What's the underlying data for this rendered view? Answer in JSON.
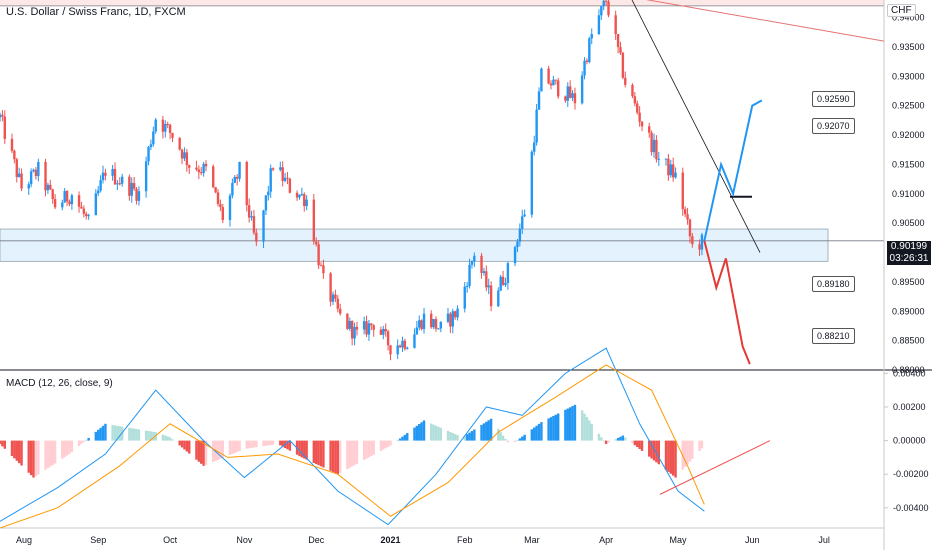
{
  "header": {
    "title": "U.S. Dollar / Swiss Franc, 1D, FXCM",
    "currency_badge": "CHF",
    "last_price": "0.90199",
    "countdown": "03:26:31"
  },
  "macd": {
    "title": "MACD (12, 26, close, 9)",
    "ticks": [
      "0.00400",
      "0.00200",
      "0.00000",
      "-0.00200",
      "-0.00400"
    ]
  },
  "callouts": [
    "0.92590",
    "0.92070",
    "0.89180",
    "0.88210"
  ],
  "colors": {
    "up": "#2196f3",
    "down": "#ef5350",
    "macd_line": "#2196f3",
    "signal_line": "#ff9800",
    "zone_fill": "#e3f2fd",
    "resistance_fill": "#fde8e8"
  },
  "chart_data": [
    {
      "type": "candlestick",
      "title": "U.S. Dollar / Swiss Franc, 1D, FXCM",
      "x_ticks": [
        "Aug",
        "Sep",
        "Oct",
        "Nov",
        "Dec",
        "2021",
        "Feb",
        "Mar",
        "Apr",
        "May",
        "Jun",
        "Jul"
      ],
      "y_ticks": [
        "0.94000",
        "0.93500",
        "0.93000",
        "0.92500",
        "0.92000",
        "0.91500",
        "0.91000",
        "0.90500",
        "0.90000",
        "0.89500",
        "0.89000",
        "0.88500",
        "0.88000"
      ],
      "ylim": [
        0.88,
        0.943
      ],
      "close_path": [
        [
          "2020-07-22",
          0.923
        ],
        [
          "2020-07-31",
          0.911
        ],
        [
          "2020-08-07",
          0.914
        ],
        [
          "2020-08-14",
          0.908
        ],
        [
          "2020-08-21",
          0.91
        ],
        [
          "2020-08-28",
          0.905
        ],
        [
          "2020-09-04",
          0.914
        ],
        [
          "2020-09-11",
          0.912
        ],
        [
          "2020-09-18",
          0.91
        ],
        [
          "2020-09-25",
          0.923
        ],
        [
          "2020-10-02",
          0.92
        ],
        [
          "2020-10-09",
          0.915
        ],
        [
          "2020-10-16",
          0.914
        ],
        [
          "2020-10-23",
          0.906
        ],
        [
          "2020-10-30",
          0.914
        ],
        [
          "2020-11-06",
          0.901
        ],
        [
          "2020-11-13",
          0.915
        ],
        [
          "2020-11-20",
          0.911
        ],
        [
          "2020-11-27",
          0.909
        ],
        [
          "2020-12-04",
          0.895
        ],
        [
          "2020-12-11",
          0.889
        ],
        [
          "2020-12-18",
          0.886
        ],
        [
          "2020-12-25",
          0.888
        ],
        [
          "2021-01-01",
          0.884
        ],
        [
          "2021-01-08",
          0.885
        ],
        [
          "2021-01-15",
          0.889
        ],
        [
          "2021-01-22",
          0.887
        ],
        [
          "2021-01-29",
          0.89
        ],
        [
          "2021-02-05",
          0.9
        ],
        [
          "2021-02-12",
          0.892
        ],
        [
          "2021-02-19",
          0.897
        ],
        [
          "2021-02-26",
          0.907
        ],
        [
          "2021-03-05",
          0.93
        ],
        [
          "2021-03-12",
          0.928
        ],
        [
          "2021-03-19",
          0.926
        ],
        [
          "2021-03-26",
          0.937
        ],
        [
          "2021-04-01",
          0.943
        ],
        [
          "2021-04-09",
          0.929
        ],
        [
          "2021-04-16",
          0.922
        ],
        [
          "2021-04-23",
          0.916
        ],
        [
          "2021-04-30",
          0.913
        ],
        [
          "2021-05-07",
          0.901
        ],
        [
          "2021-05-12",
          0.902
        ]
      ],
      "zones": [
        {
          "from": 0.8985,
          "to": 0.904,
          "label": ""
        },
        {
          "from": 0.942,
          "to": 0.95,
          "label": ""
        }
      ],
      "horizontal_lines": [
        0.942,
        0.902,
        0.9095
      ],
      "projections": [
        {
          "color": "#2196f3",
          "path": [
            [
              "2021-05-12",
              0.902
            ],
            [
              "2021-05-19",
              0.915
            ],
            [
              "2021-05-24",
              0.91
            ],
            [
              "2021-06-01",
              0.925
            ],
            [
              "2021-06-05",
              0.9259
            ]
          ]
        },
        {
          "color": "#e53935",
          "path": [
            [
              "2021-05-12",
              0.902
            ],
            [
              "2021-05-17",
              0.894
            ],
            [
              "2021-05-21",
              0.899
            ],
            [
              "2021-05-28",
              0.884
            ],
            [
              "2021-05-31",
              0.881
            ]
          ]
        }
      ]
    },
    {
      "type": "bar",
      "title": "MACD (12, 26, close, 9)",
      "ylim": [
        -0.0052,
        0.0042
      ],
      "histogram_path": [
        [
          "2020-07-22",
          -0.0002
        ],
        [
          "2020-08-05",
          -0.0022
        ],
        [
          "2020-08-20",
          -0.0008
        ],
        [
          "2020-09-04",
          0.001
        ],
        [
          "2020-09-25",
          0.0005
        ],
        [
          "2020-10-01",
          0.0002
        ],
        [
          "2020-10-15",
          -0.0015
        ],
        [
          "2020-11-01",
          -0.0005
        ],
        [
          "2020-11-15",
          -0.0002
        ],
        [
          "2020-11-25",
          -0.001
        ],
        [
          "2020-12-10",
          -0.002
        ],
        [
          "2021-01-01",
          -0.0003
        ],
        [
          "2021-01-15",
          0.0012
        ],
        [
          "2021-01-31",
          0.0002
        ],
        [
          "2021-02-12",
          0.0013
        ],
        [
          "2021-02-20",
          -0.0003
        ],
        [
          "2021-03-05",
          0.0011
        ],
        [
          "2021-03-20",
          0.0022
        ],
        [
          "2021-04-01",
          -0.0002
        ],
        [
          "2021-04-08",
          0.0003
        ],
        [
          "2021-04-15",
          -0.0005
        ],
        [
          "2021-04-30",
          -0.0022
        ],
        [
          "2021-05-12",
          -0.0003
        ]
      ],
      "macd_line_path": [
        [
          "2020-07-22",
          -0.0048
        ],
        [
          "2020-08-15",
          -0.0028
        ],
        [
          "2020-09-04",
          -0.0008
        ],
        [
          "2020-09-25",
          0.003
        ],
        [
          "2020-10-15",
          0.0
        ],
        [
          "2020-11-01",
          -0.0022
        ],
        [
          "2020-11-20",
          0.0
        ],
        [
          "2020-12-10",
          -0.003
        ],
        [
          "2020-12-31",
          -0.005
        ],
        [
          "2021-01-20",
          -0.002
        ],
        [
          "2021-02-10",
          0.002
        ],
        [
          "2021-02-25",
          0.0015
        ],
        [
          "2021-03-15",
          0.004
        ],
        [
          "2021-04-01",
          0.0055
        ],
        [
          "2021-04-15",
          0.001
        ],
        [
          "2021-05-01",
          -0.003
        ],
        [
          "2021-05-12",
          -0.0042
        ]
      ],
      "signal_line_path": [
        [
          "2020-07-22",
          -0.0052
        ],
        [
          "2020-08-15",
          -0.004
        ],
        [
          "2020-09-10",
          -0.0015
        ],
        [
          "2020-10-01",
          0.001
        ],
        [
          "2020-10-25",
          -0.001
        ],
        [
          "2020-11-15",
          -0.0008
        ],
        [
          "2020-12-10",
          -0.002
        ],
        [
          "2021-01-01",
          -0.0045
        ],
        [
          "2021-01-25",
          -0.0025
        ],
        [
          "2021-02-15",
          0.0005
        ],
        [
          "2021-03-10",
          0.0025
        ],
        [
          "2021-04-01",
          0.0045
        ],
        [
          "2021-04-20",
          0.003
        ],
        [
          "2021-05-05",
          -0.0015
        ],
        [
          "2021-05-12",
          -0.0038
        ]
      ]
    }
  ]
}
